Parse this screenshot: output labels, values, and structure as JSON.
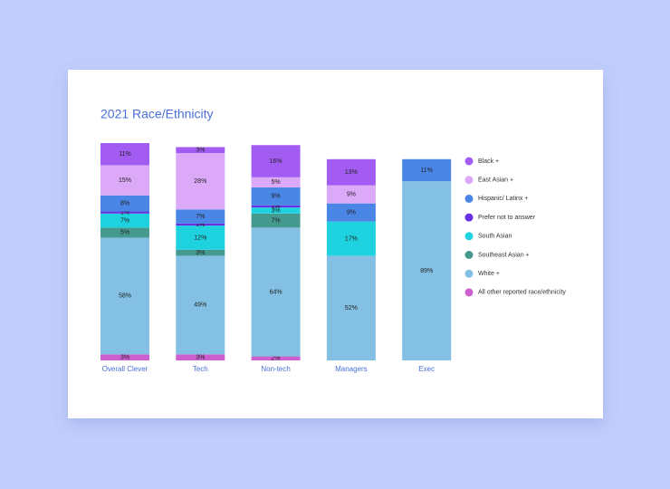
{
  "chart_data": {
    "type": "stacked_bar",
    "title": "2021 Race/Ethnicity",
    "categories": [
      "Overall Clever",
      "Tech",
      "Non-tech",
      "Managers",
      "Exec"
    ],
    "ylim": [
      0,
      108
    ],
    "series": [
      {
        "name": "Black +",
        "color": "#a35cf2",
        "values": [
          11,
          3,
          16,
          13,
          null
        ],
        "value_labels": [
          "11%",
          "3%",
          "16%",
          "13%",
          null
        ]
      },
      {
        "name": "East Asian +",
        "color": "#dca9f9",
        "values": [
          15,
          28,
          5,
          9,
          null
        ],
        "value_labels": [
          "15%",
          "28%",
          "5%",
          "9%",
          null
        ]
      },
      {
        "name": "Hispanic/ Latinx +",
        "color": "#4a86e6",
        "values": [
          8,
          7,
          9,
          9,
          11
        ],
        "value_labels": [
          "8%",
          "7%",
          "9%",
          "9%",
          "11%"
        ]
      },
      {
        "name": "Prefer not to answer",
        "color": "#6a2fe2",
        "values": [
          1,
          1,
          1,
          null,
          null
        ],
        "value_labels": [
          "1%",
          "1%",
          "1%",
          null,
          null
        ]
      },
      {
        "name": "South Asian",
        "color": "#1ed3df",
        "values": [
          7,
          12,
          3,
          17,
          null
        ],
        "value_labels": [
          "7%",
          "12%",
          "3%",
          "17%",
          null
        ]
      },
      {
        "name": "Southeast Asian +",
        "color": "#45998f",
        "values": [
          5,
          3,
          7,
          null,
          null
        ],
        "value_labels": [
          "5%",
          "3%",
          "7%",
          null,
          null
        ]
      },
      {
        "name": "White +",
        "color": "#83c0e3",
        "values": [
          58,
          49,
          64,
          52,
          89
        ],
        "value_labels": [
          "58%",
          "49%",
          "64%",
          "52%",
          "89%"
        ]
      },
      {
        "name": "All other reported race/ethnicity",
        "color": "#cd5fd0",
        "values": [
          3,
          3,
          2,
          null,
          null
        ],
        "value_labels": [
          "3%",
          "3%",
          "2%",
          null,
          null
        ]
      }
    ]
  }
}
